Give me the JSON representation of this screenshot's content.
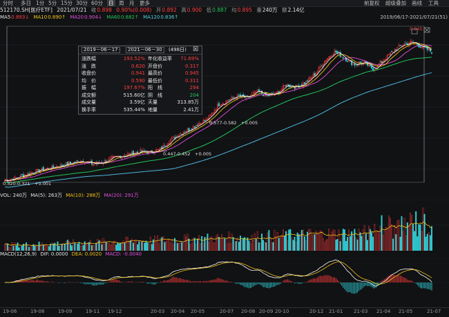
{
  "toolbar": {
    "periods": [
      "分时",
      "多日",
      "1分",
      "5分",
      "15分",
      "30分",
      "60分",
      "日",
      "周",
      "月",
      "更多"
    ],
    "active_period": "日",
    "right_items": [
      "前复权",
      "超级叠加",
      "画线",
      "工具"
    ]
  },
  "quote": {
    "code_name": "512170.SH[医疗ETF]",
    "date": "2021/07/21",
    "close_label": "收",
    "close_value": "0.898",
    "change_pct": "0.90%(0.008)",
    "open_label": "开",
    "open_value": "0.892",
    "high_label": "高",
    "high_value": "0.900",
    "low_label": "低",
    "low_value": "0.887",
    "avg_label": "均",
    "avg_value": "0.895",
    "vol_label": "量",
    "vol_value": "240万",
    "amt_label": "额",
    "amt_value": "2.14亿"
  },
  "ma": {
    "ma5_label": "MA5",
    "ma5_value": "0.893↓",
    "ma10_label": "MA10",
    "ma10_value": "0.890↑",
    "ma20_label": "MA20",
    "ma20_value": "0.904↓",
    "ma60_label": "MA60",
    "ma60_value": "0.882↑",
    "ma120_label": "MA120",
    "ma120_value": "0.836↑",
    "range_label": "2019/06/17-2021/07/21(51)"
  },
  "stats_box": {
    "start": "2019－06－17",
    "end": "2021－06－30",
    "days": "(498日)",
    "close_btn": "☒",
    "rows": [
      [
        "涨跌幅",
        "193.52%",
        "年化收益率",
        "71.69%"
      ],
      [
        "涨　跌",
        "0.620",
        "开盘价",
        "0.317"
      ],
      [
        "收盘价",
        "0.941",
        "最高价",
        "0.945"
      ],
      [
        "均　价",
        "0.590",
        "最低价",
        "0.311"
      ],
      [
        "振　幅",
        "197.67%",
        "阳　线",
        "294"
      ],
      [
        "成交额",
        "515.60亿",
        "阴　线",
        "204"
      ],
      [
        "成交量",
        "3.59亿",
        "天量",
        "313.85万"
      ],
      [
        "换手率",
        "535.44%",
        "地量",
        "2.41万"
      ]
    ]
  },
  "annotations": {
    "a1": "0.577-0.582　+0.005",
    "a2": "0.447-0.452　+0.005",
    "a3": "0.320-0.321　+0.001",
    "peak": "0.945"
  },
  "volume_panel": {
    "title": "VOL: 240万",
    "ma5": "MA(5): 263万",
    "ma10": "MA(10): 288万",
    "ma20": "MA(20): 291万"
  },
  "macd_panel": {
    "title": "MACD(12,26,9)",
    "dif": "DIF: 0.0000",
    "dea": "DEA: 0.0020",
    "macd": "MACD: -0.0040"
  },
  "xaxis": [
    "19-06",
    "19-08",
    "19-09",
    "19-11",
    "19-12",
    "20-03",
    "20-04",
    "20-05",
    "20-07",
    "20-08",
    "20-09",
    "20-10",
    "20-12",
    "21-01",
    "21-03",
    "21-04",
    "21-05",
    "21-07"
  ],
  "colors": {
    "up": "#ff3b3b",
    "down": "#2fd0d8",
    "ma5": "#ffffff",
    "ma10": "#f2c318",
    "ma20": "#e050e0",
    "ma60": "#23c65a",
    "ma120": "#4fb8e0"
  },
  "chart_data": {
    "type": "candlestick",
    "x_start": "2019-06-17",
    "x_end": "2021-07-21",
    "close_path": [
      0.321,
      0.33,
      0.345,
      0.36,
      0.37,
      0.38,
      0.39,
      0.4,
      0.41,
      0.395,
      0.4,
      0.42,
      0.43,
      0.44,
      0.45,
      0.447,
      0.46,
      0.5,
      0.53,
      0.55,
      0.577,
      0.6,
      0.66,
      0.68,
      0.7,
      0.69,
      0.72,
      0.7,
      0.71,
      0.75,
      0.74,
      0.76,
      0.8,
      0.86,
      0.9,
      0.87,
      0.84,
      0.85,
      0.82,
      0.86,
      0.9,
      0.93,
      0.941,
      0.92,
      0.898
    ],
    "y_range": [
      0.3,
      1.0
    ]
  }
}
